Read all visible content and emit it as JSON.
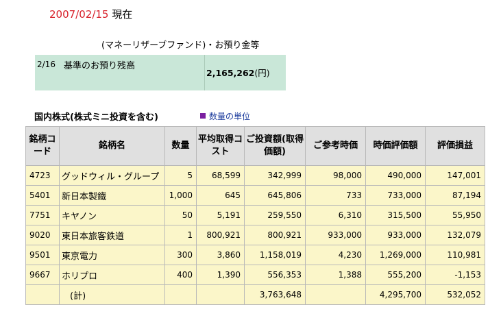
{
  "header": {
    "date": "2007/02/15",
    "suffix": "現在"
  },
  "mrf": {
    "caption": "(マネーリザーブファンド)・お預り金等",
    "row_date": "2/16",
    "row_label": "基準のお預り残高",
    "amount": "2,165,262",
    "unit": "(円)"
  },
  "stocks": {
    "section_title": "国内株式(株式ミニ投資を含む)",
    "unit_link": "数量の単位",
    "columns": [
      "銘柄コード",
      "銘柄名",
      "数量",
      "平均取得コスト",
      "ご投資額(取得価額)",
      "ご参考時価",
      "時価評価額",
      "評価損益"
    ],
    "rows": [
      {
        "code": "4723",
        "name": "グッドウィル・グループ",
        "qty": "5",
        "avg_cost": "68,599",
        "invested": "342,999",
        "ref_price": "98,000",
        "market_value": "490,000",
        "pl": "147,001"
      },
      {
        "code": "5401",
        "name": "新日本製鐵",
        "qty": "1,000",
        "avg_cost": "645",
        "invested": "645,806",
        "ref_price": "733",
        "market_value": "733,000",
        "pl": "87,194"
      },
      {
        "code": "7751",
        "name": "キヤノン",
        "qty": "50",
        "avg_cost": "5,191",
        "invested": "259,550",
        "ref_price": "6,310",
        "market_value": "315,500",
        "pl": "55,950"
      },
      {
        "code": "9020",
        "name": "東日本旅客鉄道",
        "qty": "1",
        "avg_cost": "800,921",
        "invested": "800,921",
        "ref_price": "933,000",
        "market_value": "933,000",
        "pl": "132,079"
      },
      {
        "code": "9501",
        "name": "東京電力",
        "qty": "300",
        "avg_cost": "3,860",
        "invested": "1,158,019",
        "ref_price": "4,230",
        "market_value": "1,269,000",
        "pl": "110,981"
      },
      {
        "code": "9667",
        "name": "ホリプロ",
        "qty": "400",
        "avg_cost": "1,390",
        "invested": "556,353",
        "ref_price": "1,388",
        "market_value": "555,200",
        "pl": "-1,153"
      }
    ],
    "total": {
      "label": "(計)",
      "invested": "3,763,648",
      "market_value": "4,295,700",
      "pl": "532,052"
    }
  }
}
